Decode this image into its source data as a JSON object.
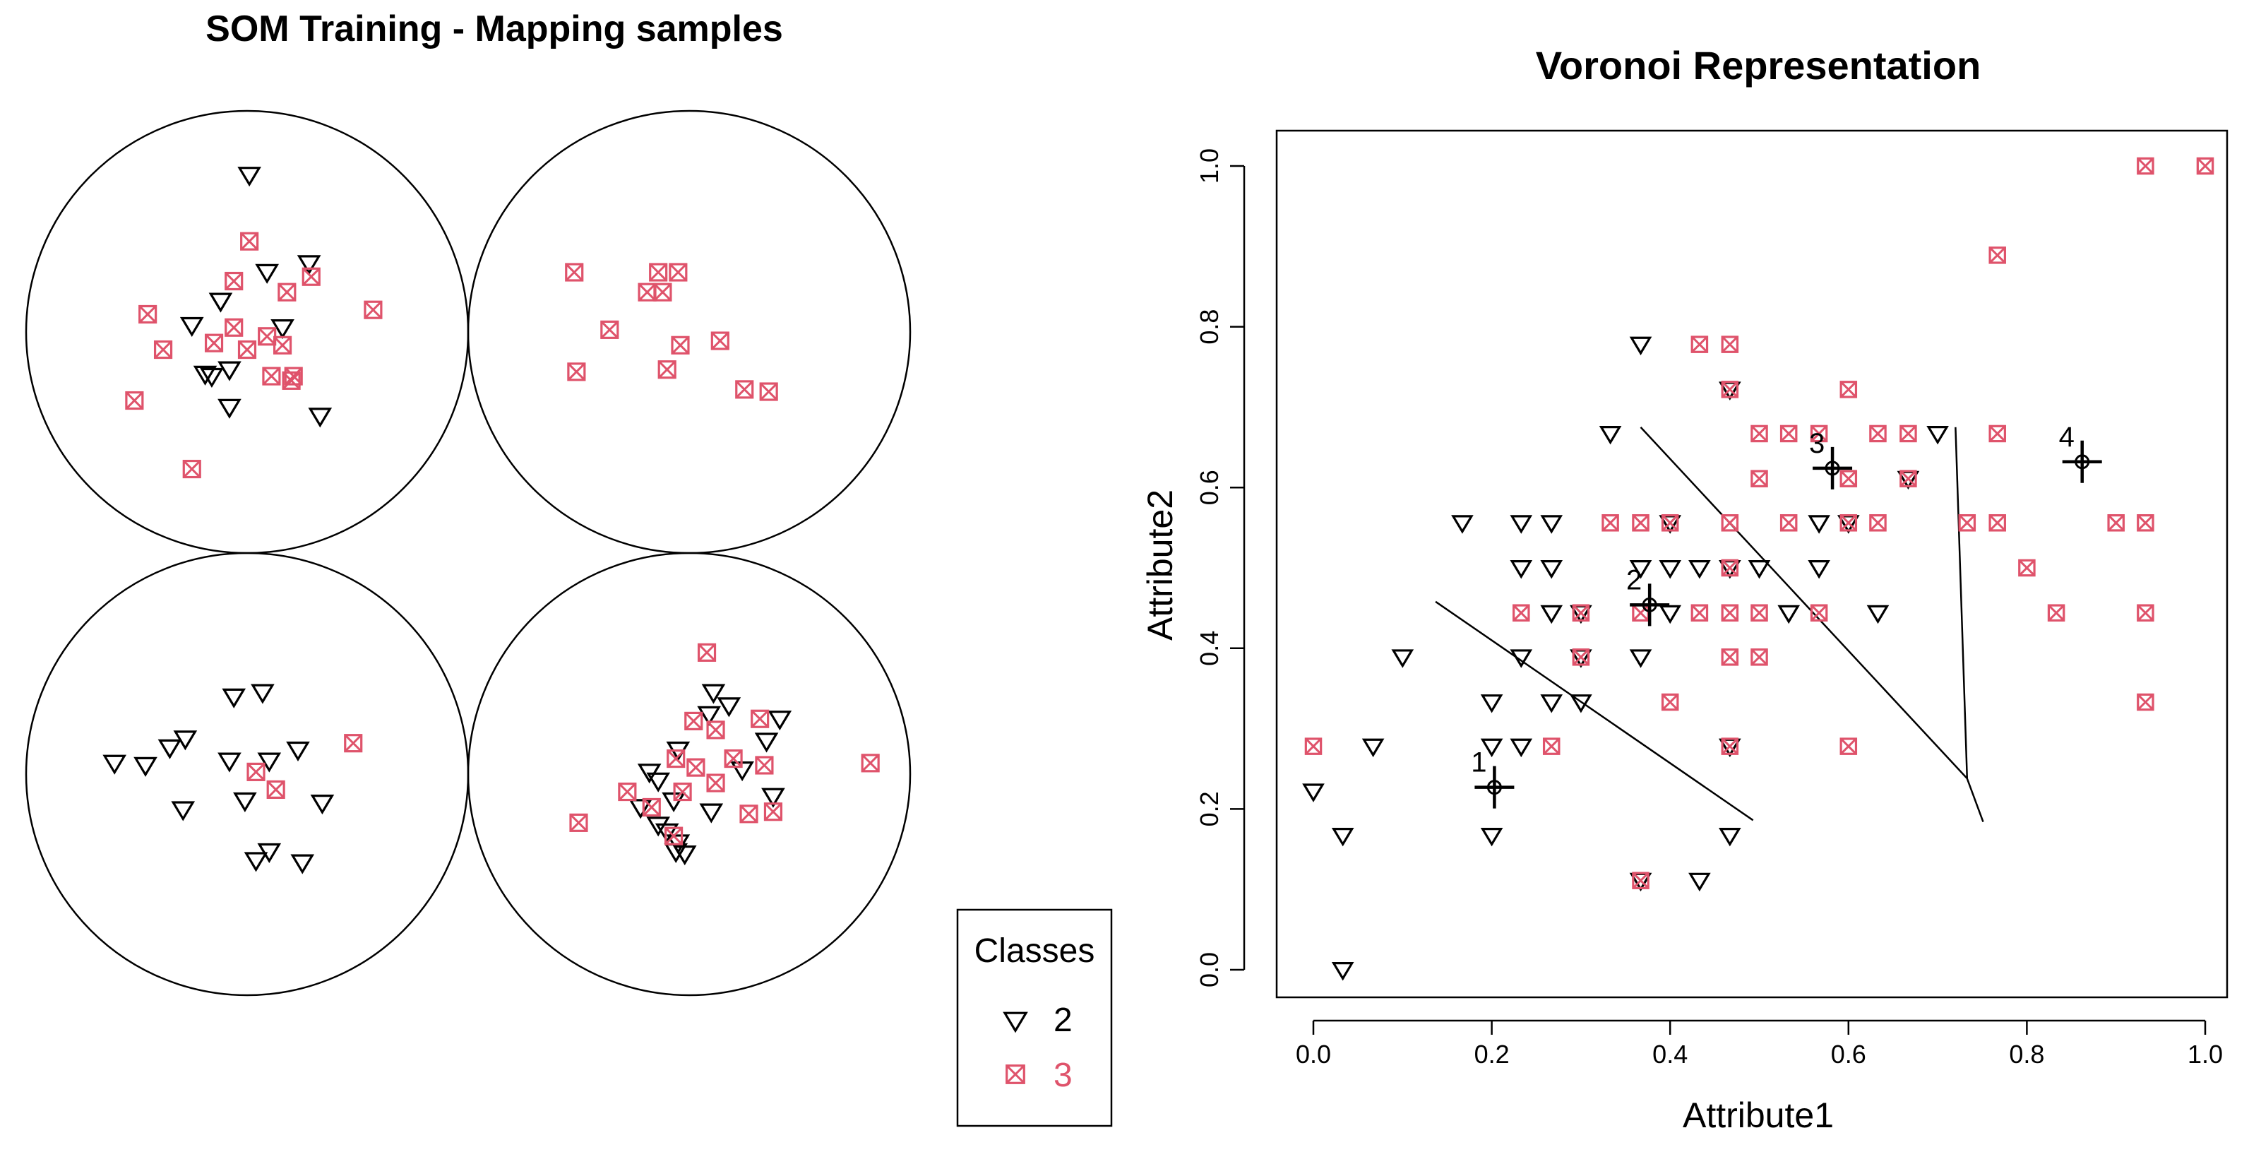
{
  "chart_data": [
    {
      "type": "scatter",
      "title": "SOM Training - Mapping samples",
      "xlabel": "",
      "ylabel": "",
      "grid": false,
      "description_units": "unit-circle offsets within each SOM node",
      "nodes": [
        {
          "name": "node-top-left",
          "points": [
            {
              "class": "2",
              "x": 0.01,
              "y": 0.71
            },
            {
              "class": "2",
              "x": 0.09,
              "y": 0.27
            },
            {
              "class": "2",
              "x": 0.28,
              "y": 0.31
            },
            {
              "class": "2",
              "x": -0.12,
              "y": 0.14
            },
            {
              "class": "2",
              "x": -0.25,
              "y": 0.03
            },
            {
              "class": "2",
              "x": 0.16,
              "y": 0.02
            },
            {
              "class": "2",
              "x": -0.08,
              "y": -0.17
            },
            {
              "class": "2",
              "x": -0.19,
              "y": -0.19
            },
            {
              "class": "2",
              "x": -0.16,
              "y": -0.2
            },
            {
              "class": "2",
              "x": -0.08,
              "y": -0.34
            },
            {
              "class": "2",
              "x": 0.33,
              "y": -0.38
            },
            {
              "class": "3",
              "x": 0.01,
              "y": 0.41
            },
            {
              "class": "3",
              "x": -0.06,
              "y": 0.23
            },
            {
              "class": "3",
              "x": 0.29,
              "y": 0.25
            },
            {
              "class": "3",
              "x": 0.18,
              "y": 0.18
            },
            {
              "class": "3",
              "x": 0.57,
              "y": 0.1
            },
            {
              "class": "3",
              "x": -0.45,
              "y": 0.08
            },
            {
              "class": "3",
              "x": -0.38,
              "y": -0.08
            },
            {
              "class": "3",
              "x": -0.15,
              "y": -0.05
            },
            {
              "class": "3",
              "x": -0.06,
              "y": 0.02
            },
            {
              "class": "3",
              "x": 0.09,
              "y": -0.02
            },
            {
              "class": "3",
              "x": 0.0,
              "y": -0.08
            },
            {
              "class": "3",
              "x": 0.16,
              "y": -0.06
            },
            {
              "class": "3",
              "x": 0.11,
              "y": -0.2
            },
            {
              "class": "3",
              "x": 0.21,
              "y": -0.2
            },
            {
              "class": "3",
              "x": 0.2,
              "y": -0.22
            },
            {
              "class": "3",
              "x": -0.51,
              "y": -0.31
            },
            {
              "class": "3",
              "x": -0.25,
              "y": -0.62
            }
          ]
        },
        {
          "name": "node-top-right",
          "points": [
            {
              "class": "3",
              "x": -0.52,
              "y": 0.27
            },
            {
              "class": "3",
              "x": -0.14,
              "y": 0.27
            },
            {
              "class": "3",
              "x": -0.05,
              "y": 0.27
            },
            {
              "class": "3",
              "x": -0.19,
              "y": 0.18
            },
            {
              "class": "3",
              "x": -0.12,
              "y": 0.18
            },
            {
              "class": "3",
              "x": -0.36,
              "y": 0.01
            },
            {
              "class": "3",
              "x": -0.04,
              "y": -0.06
            },
            {
              "class": "3",
              "x": 0.14,
              "y": -0.04
            },
            {
              "class": "3",
              "x": -0.51,
              "y": -0.18
            },
            {
              "class": "3",
              "x": -0.1,
              "y": -0.17
            },
            {
              "class": "3",
              "x": 0.25,
              "y": -0.26
            },
            {
              "class": "3",
              "x": 0.36,
              "y": -0.27
            }
          ]
        },
        {
          "name": "node-bottom-left",
          "points": [
            {
              "class": "2",
              "x": -0.06,
              "y": 0.35
            },
            {
              "class": "2",
              "x": 0.07,
              "y": 0.37
            },
            {
              "class": "2",
              "x": -0.28,
              "y": 0.16
            },
            {
              "class": "2",
              "x": -0.35,
              "y": 0.12
            },
            {
              "class": "2",
              "x": 0.23,
              "y": 0.11
            },
            {
              "class": "2",
              "x": -0.6,
              "y": 0.05
            },
            {
              "class": "2",
              "x": -0.46,
              "y": 0.04
            },
            {
              "class": "2",
              "x": -0.08,
              "y": 0.06
            },
            {
              "class": "2",
              "x": 0.1,
              "y": 0.06
            },
            {
              "class": "2",
              "x": -0.01,
              "y": -0.12
            },
            {
              "class": "2",
              "x": -0.29,
              "y": -0.16
            },
            {
              "class": "2",
              "x": 0.34,
              "y": -0.13
            },
            {
              "class": "2",
              "x": 0.1,
              "y": -0.35
            },
            {
              "class": "2",
              "x": 0.04,
              "y": -0.39
            },
            {
              "class": "2",
              "x": 0.25,
              "y": -0.4
            },
            {
              "class": "3",
              "x": 0.48,
              "y": 0.14
            },
            {
              "class": "3",
              "x": 0.04,
              "y": 0.01
            },
            {
              "class": "3",
              "x": 0.13,
              "y": -0.07
            }
          ]
        },
        {
          "name": "node-bottom-right",
          "points": [
            {
              "class": "2",
              "x": 0.11,
              "y": 0.37
            },
            {
              "class": "2",
              "x": 0.18,
              "y": 0.31
            },
            {
              "class": "2",
              "x": 0.41,
              "y": 0.25
            },
            {
              "class": "2",
              "x": 0.09,
              "y": 0.27
            },
            {
              "class": "2",
              "x": 0.35,
              "y": 0.15
            },
            {
              "class": "2",
              "x": -0.05,
              "y": 0.11
            },
            {
              "class": "2",
              "x": 0.24,
              "y": 0.02
            },
            {
              "class": "2",
              "x": -0.18,
              "y": 0.01
            },
            {
              "class": "2",
              "x": -0.14,
              "y": -0.03
            },
            {
              "class": "2",
              "x": 0.38,
              "y": -0.1
            },
            {
              "class": "2",
              "x": -0.07,
              "y": -0.12
            },
            {
              "class": "2",
              "x": -0.22,
              "y": -0.15
            },
            {
              "class": "2",
              "x": 0.1,
              "y": -0.17
            },
            {
              "class": "2",
              "x": -0.14,
              "y": -0.23
            },
            {
              "class": "2",
              "x": -0.1,
              "y": -0.26
            },
            {
              "class": "2",
              "x": -0.05,
              "y": -0.31
            },
            {
              "class": "2",
              "x": -0.06,
              "y": -0.35
            },
            {
              "class": "2",
              "x": -0.02,
              "y": -0.36
            },
            {
              "class": "3",
              "x": 0.08,
              "y": 0.55
            },
            {
              "class": "3",
              "x": 0.02,
              "y": 0.24
            },
            {
              "class": "3",
              "x": 0.32,
              "y": 0.25
            },
            {
              "class": "3",
              "x": 0.12,
              "y": 0.2
            },
            {
              "class": "3",
              "x": -0.06,
              "y": 0.07
            },
            {
              "class": "3",
              "x": 0.2,
              "y": 0.07
            },
            {
              "class": "3",
              "x": 0.03,
              "y": 0.03
            },
            {
              "class": "3",
              "x": 0.34,
              "y": 0.04
            },
            {
              "class": "3",
              "x": 0.82,
              "y": 0.05
            },
            {
              "class": "3",
              "x": -0.28,
              "y": -0.08
            },
            {
              "class": "3",
              "x": -0.03,
              "y": -0.08
            },
            {
              "class": "3",
              "x": 0.12,
              "y": -0.04
            },
            {
              "class": "3",
              "x": -0.17,
              "y": -0.15
            },
            {
              "class": "3",
              "x": 0.27,
              "y": -0.18
            },
            {
              "class": "3",
              "x": 0.38,
              "y": -0.17
            },
            {
              "class": "3",
              "x": -0.5,
              "y": -0.22
            },
            {
              "class": "3",
              "x": -0.07,
              "y": -0.28
            }
          ]
        }
      ],
      "legend": {
        "title": "Classes",
        "position": "bottom-left of right panel",
        "entries": [
          {
            "label": "2",
            "marker": "triangle-down",
            "color": "#000000"
          },
          {
            "label": "3",
            "marker": "boxed-x",
            "color": "#DF536B"
          }
        ]
      }
    },
    {
      "type": "scatter",
      "title": "Voronoi Representation",
      "xlabel": "Attribute1",
      "ylabel": "Attribute2",
      "xlim": [
        0.0,
        1.0
      ],
      "ylim": [
        0.0,
        1.0
      ],
      "xticks": [
        "0.0",
        "0.2",
        "0.4",
        "0.6",
        "0.8",
        "1.0"
      ],
      "yticks": [
        "0.0",
        "0.2",
        "0.4",
        "0.6",
        "0.8",
        "1.0"
      ],
      "grid": false,
      "series": [
        {
          "name": "2",
          "marker": "triangle-down",
          "color": "#000000",
          "points": [
            [
              0.0,
              0.222
            ],
            [
              0.033,
              0.167
            ],
            [
              0.033,
              0.0
            ],
            [
              0.067,
              0.278
            ],
            [
              0.1,
              0.389
            ],
            [
              0.167,
              0.556
            ],
            [
              0.2,
              0.333
            ],
            [
              0.2,
              0.278
            ],
            [
              0.2,
              0.167
            ],
            [
              0.233,
              0.556
            ],
            [
              0.233,
              0.5
            ],
            [
              0.233,
              0.389
            ],
            [
              0.233,
              0.278
            ],
            [
              0.267,
              0.556
            ],
            [
              0.267,
              0.5
            ],
            [
              0.267,
              0.444
            ],
            [
              0.267,
              0.333
            ],
            [
              0.3,
              0.444
            ],
            [
              0.3,
              0.389
            ],
            [
              0.3,
              0.333
            ],
            [
              0.333,
              0.667
            ],
            [
              0.367,
              0.778
            ],
            [
              0.367,
              0.5
            ],
            [
              0.367,
              0.389
            ],
            [
              0.367,
              0.111
            ],
            [
              0.4,
              0.556
            ],
            [
              0.4,
              0.5
            ],
            [
              0.4,
              0.444
            ],
            [
              0.433,
              0.5
            ],
            [
              0.433,
              0.111
            ],
            [
              0.467,
              0.722
            ],
            [
              0.467,
              0.5
            ],
            [
              0.467,
              0.278
            ],
            [
              0.467,
              0.167
            ],
            [
              0.5,
              0.5
            ],
            [
              0.533,
              0.444
            ],
            [
              0.567,
              0.556
            ],
            [
              0.567,
              0.5
            ],
            [
              0.6,
              0.556
            ],
            [
              0.633,
              0.444
            ],
            [
              0.667,
              0.611
            ],
            [
              0.7,
              0.667
            ]
          ]
        },
        {
          "name": "3",
          "marker": "boxed-x",
          "color": "#DF536B",
          "points": [
            [
              0.0,
              0.278
            ],
            [
              0.233,
              0.444
            ],
            [
              0.267,
              0.278
            ],
            [
              0.3,
              0.444
            ],
            [
              0.3,
              0.389
            ],
            [
              0.333,
              0.556
            ],
            [
              0.367,
              0.556
            ],
            [
              0.367,
              0.444
            ],
            [
              0.367,
              0.111
            ],
            [
              0.4,
              0.556
            ],
            [
              0.4,
              0.333
            ],
            [
              0.433,
              0.778
            ],
            [
              0.433,
              0.444
            ],
            [
              0.467,
              0.778
            ],
            [
              0.467,
              0.722
            ],
            [
              0.467,
              0.556
            ],
            [
              0.467,
              0.5
            ],
            [
              0.467,
              0.444
            ],
            [
              0.467,
              0.389
            ],
            [
              0.467,
              0.278
            ],
            [
              0.5,
              0.667
            ],
            [
              0.5,
              0.611
            ],
            [
              0.5,
              0.444
            ],
            [
              0.5,
              0.389
            ],
            [
              0.533,
              0.667
            ],
            [
              0.533,
              0.556
            ],
            [
              0.567,
              0.667
            ],
            [
              0.567,
              0.444
            ],
            [
              0.6,
              0.722
            ],
            [
              0.6,
              0.611
            ],
            [
              0.6,
              0.556
            ],
            [
              0.6,
              0.278
            ],
            [
              0.633,
              0.667
            ],
            [
              0.633,
              0.556
            ],
            [
              0.667,
              0.667
            ],
            [
              0.667,
              0.611
            ],
            [
              0.733,
              0.556
            ],
            [
              0.767,
              0.889
            ],
            [
              0.767,
              0.667
            ],
            [
              0.767,
              0.556
            ],
            [
              0.8,
              0.5
            ],
            [
              0.833,
              0.444
            ],
            [
              0.9,
              0.556
            ],
            [
              0.933,
              1.0
            ],
            [
              0.933,
              0.556
            ],
            [
              0.933,
              0.444
            ],
            [
              0.933,
              0.333
            ],
            [
              1.0,
              1.0
            ]
          ]
        }
      ],
      "codebook": [
        {
          "label": "1",
          "x": 0.203,
          "y": 0.227
        },
        {
          "label": "2",
          "x": 0.377,
          "y": 0.454
        },
        {
          "label": "3",
          "x": 0.582,
          "y": 0.624
        },
        {
          "label": "4",
          "x": 0.862,
          "y": 0.632
        }
      ],
      "voronoi_edges": [
        [
          [
            0.137,
            0.458
          ],
          [
            0.493,
            0.186
          ]
        ],
        [
          [
            0.367,
            0.675
          ],
          [
            0.733,
            0.238
          ]
        ],
        [
          [
            0.72,
            0.675
          ],
          [
            0.733,
            0.238
          ]
        ],
        [
          [
            0.733,
            0.238
          ],
          [
            0.751,
            0.184
          ]
        ]
      ]
    }
  ]
}
